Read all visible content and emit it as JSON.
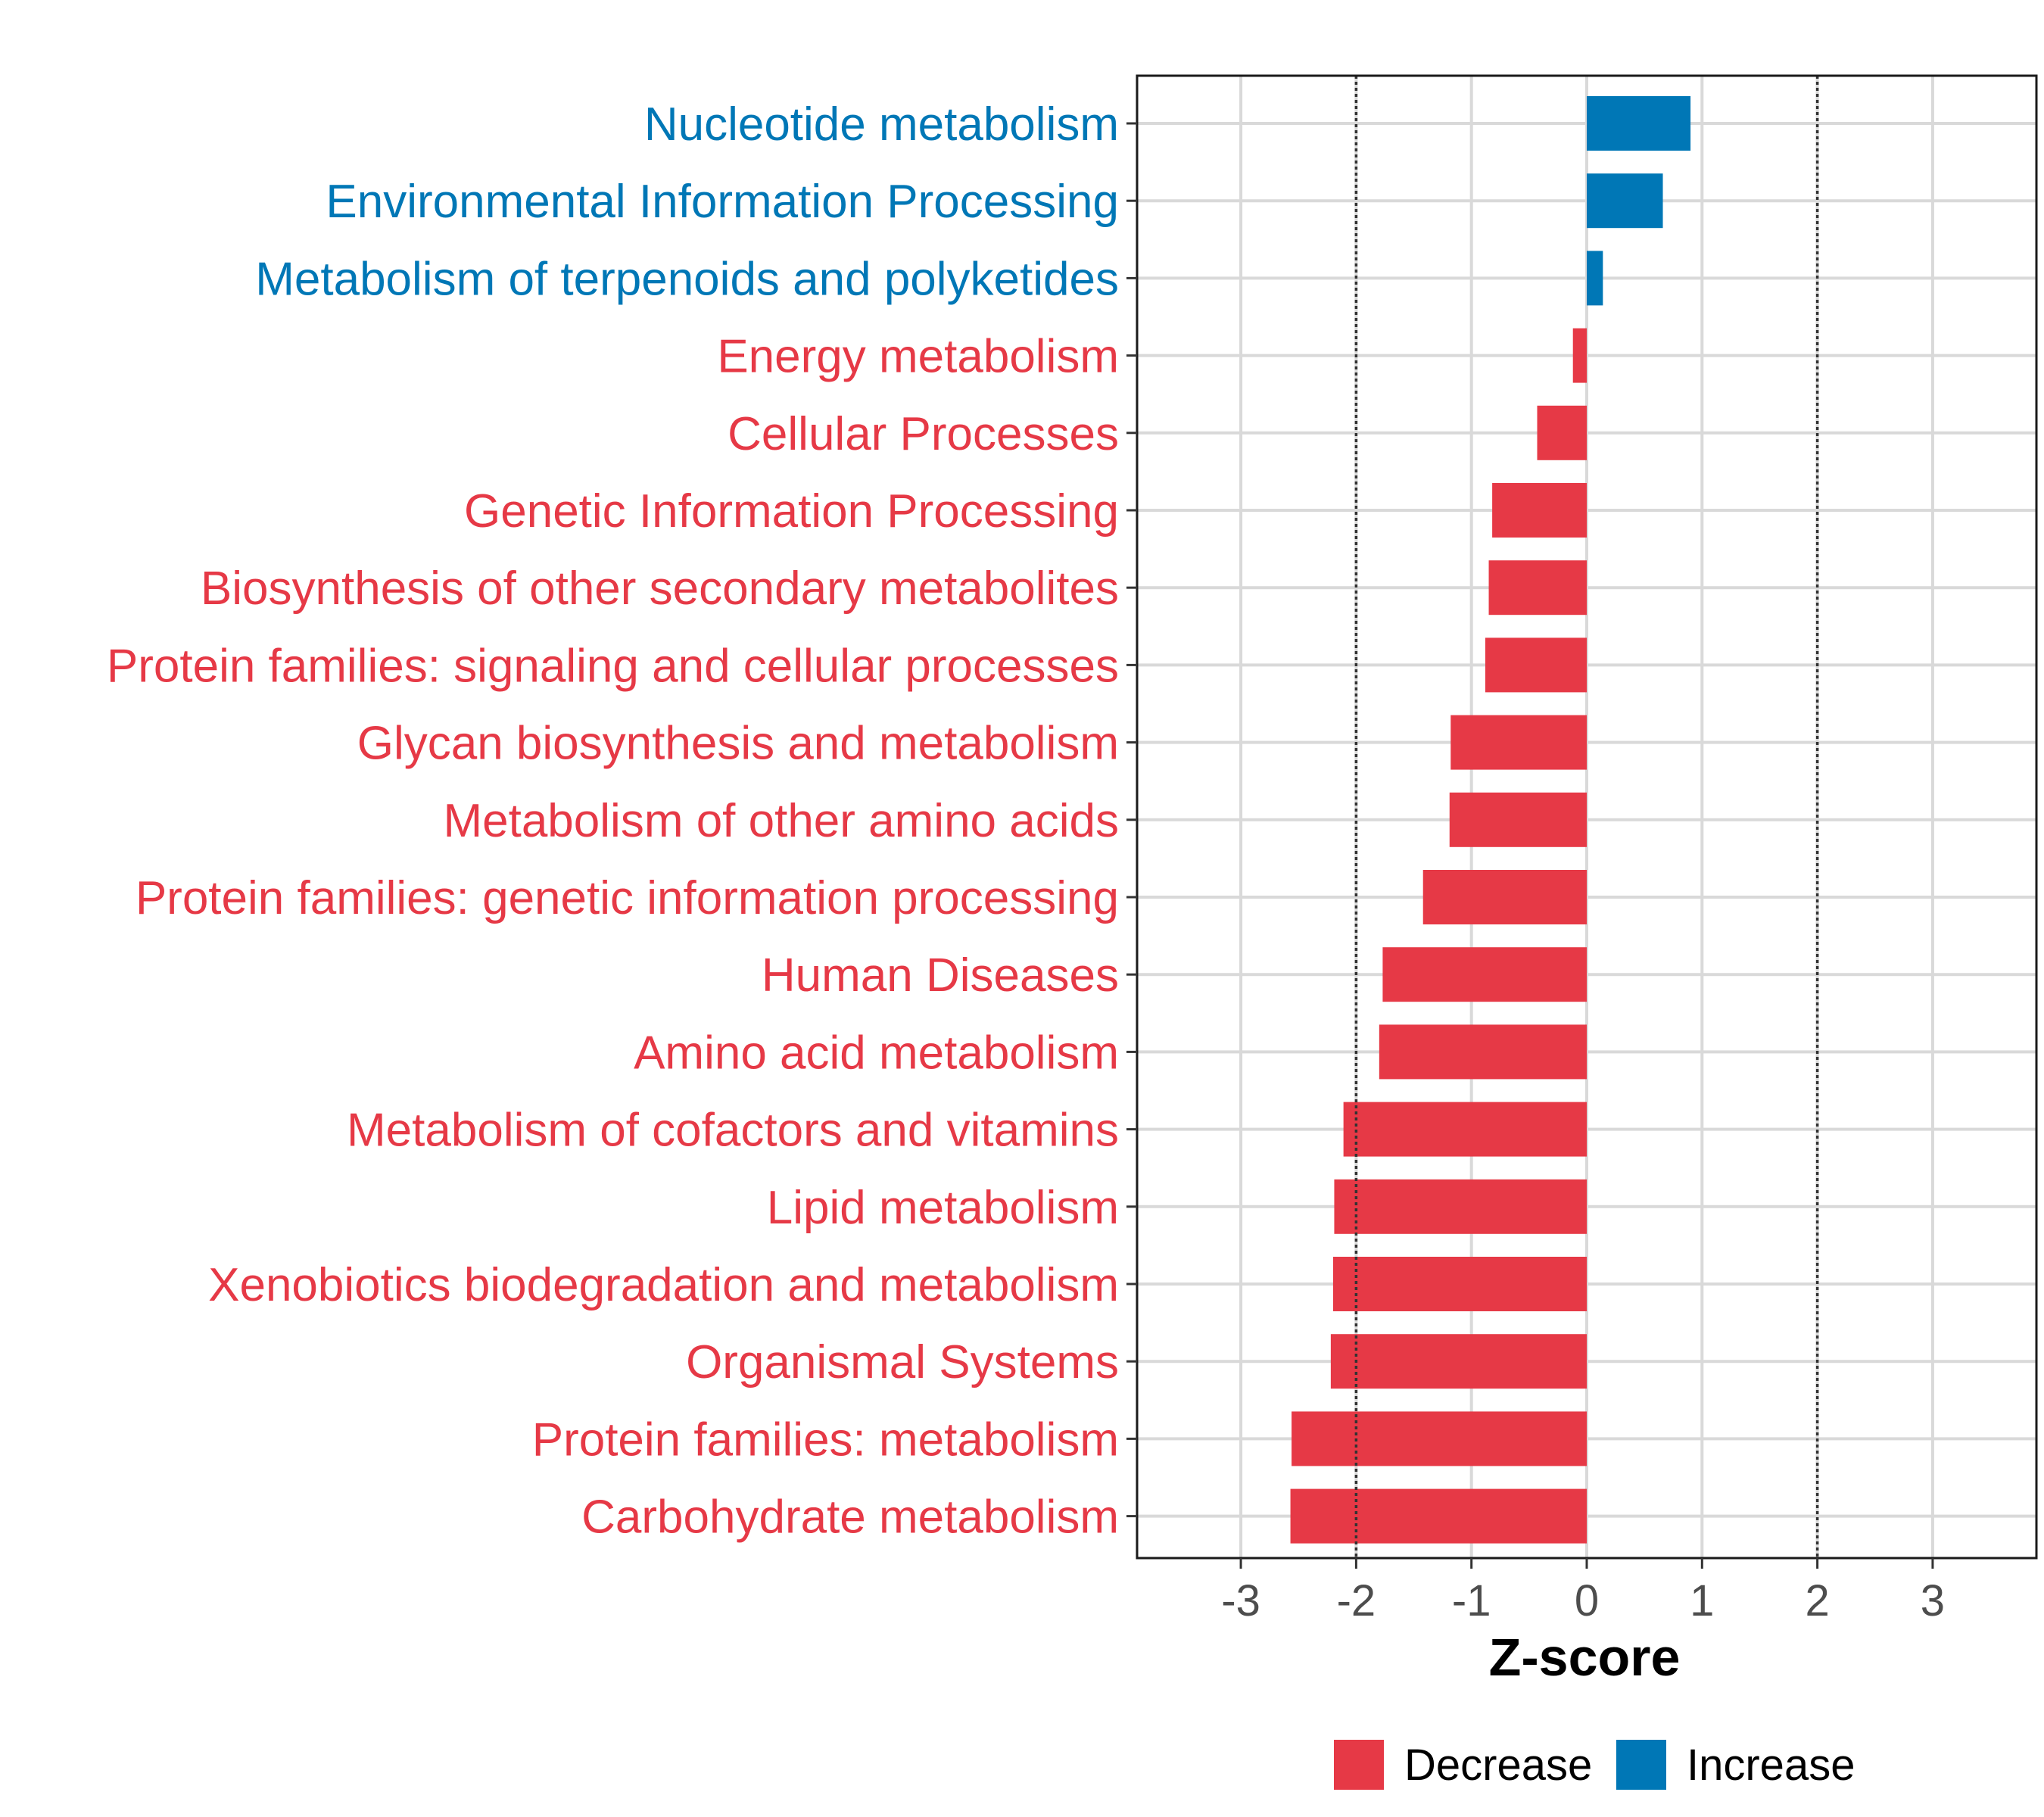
{
  "chart_data": {
    "type": "bar",
    "orientation": "horizontal",
    "xlabel": "Z-score",
    "ylabel": "",
    "xlim": [
      -3.9,
      3.9
    ],
    "x_ticks": [
      -3,
      -2,
      -1,
      0,
      1,
      2,
      3
    ],
    "x_tick_labels": [
      "-3",
      "-2",
      "-1",
      "0",
      "1",
      "2",
      "3"
    ],
    "reference_lines": [
      -2,
      2
    ],
    "grid": true,
    "legend_position": "bottom",
    "colors": {
      "Decrease": "#e63946",
      "Increase": "#0077b6"
    },
    "legend": [
      "Decrease",
      "Increase"
    ],
    "categories": [
      "Nucleotide metabolism",
      "Environmental Information Processing",
      "Metabolism of terpenoids and polyketides",
      "Energy metabolism",
      "Cellular Processes",
      "Genetic Information Processing",
      "Biosynthesis of other secondary metabolites",
      "Protein families: signaling and cellular processes",
      "Glycan biosynthesis and metabolism",
      "Metabolism of other amino acids",
      "Protein families: genetic information processing",
      "Human Diseases",
      "Amino acid metabolism",
      "Metabolism of cofactors and vitamins",
      "Lipid metabolism",
      "Xenobiotics biodegradation and metabolism",
      "Organismal Systems",
      "Protein families: metabolism",
      "Carbohydrate metabolism"
    ],
    "values": [
      0.9,
      0.66,
      0.14,
      -0.12,
      -0.43,
      -0.82,
      -0.85,
      -0.88,
      -1.18,
      -1.19,
      -1.42,
      -1.77,
      -1.8,
      -2.11,
      -2.19,
      -2.2,
      -2.22,
      -2.56,
      -2.57
    ],
    "groups": [
      "Increase",
      "Increase",
      "Increase",
      "Decrease",
      "Decrease",
      "Decrease",
      "Decrease",
      "Decrease",
      "Decrease",
      "Decrease",
      "Decrease",
      "Decrease",
      "Decrease",
      "Decrease",
      "Decrease",
      "Decrease",
      "Decrease",
      "Decrease",
      "Decrease"
    ]
  }
}
